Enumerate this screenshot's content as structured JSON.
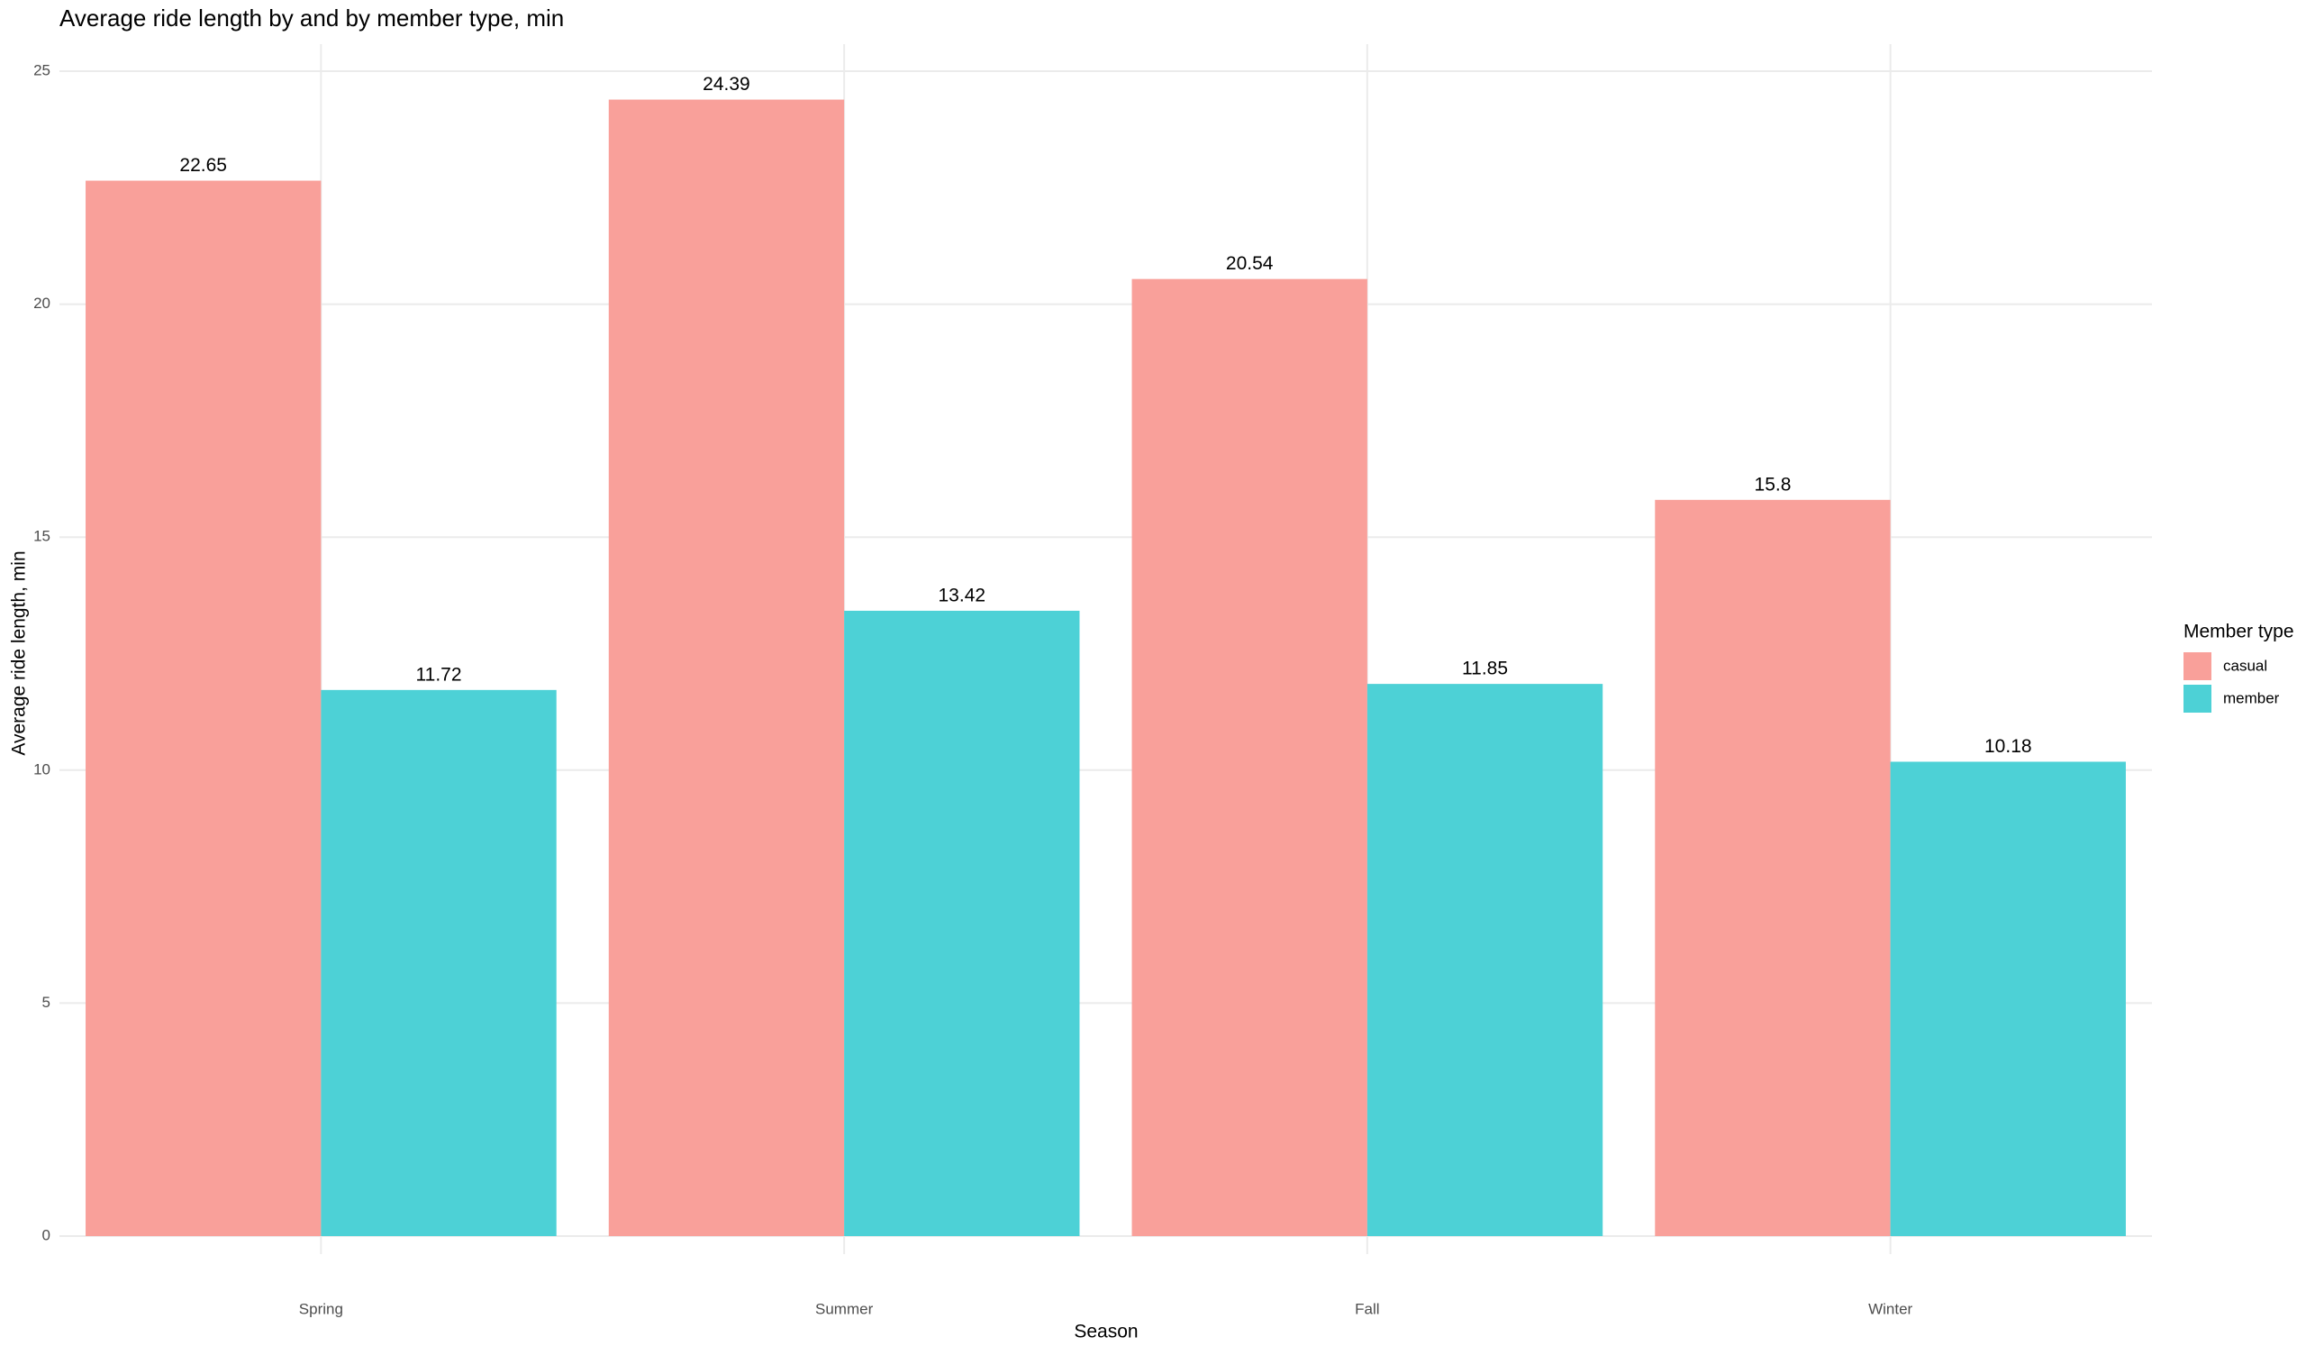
{
  "chart_data": {
    "type": "bar",
    "title": "Average ride length by and by member type, min",
    "x_label": "Season",
    "y_label": "Average ride length, min",
    "legend_title": "Member type",
    "legend_position": "right",
    "grid": true,
    "categories": [
      "Spring",
      "Summer",
      "Fall",
      "Winter"
    ],
    "series": [
      {
        "name": "casual",
        "color": "#f9a09a",
        "values": [
          22.65,
          24.39,
          20.54,
          15.8
        ]
      },
      {
        "name": "member",
        "color": "#4dd1d6",
        "values": [
          11.72,
          13.42,
          11.85,
          10.18
        ]
      }
    ],
    "ylim": [
      0,
      25
    ],
    "yticks": [
      0,
      5,
      10,
      15,
      20,
      25
    ]
  }
}
